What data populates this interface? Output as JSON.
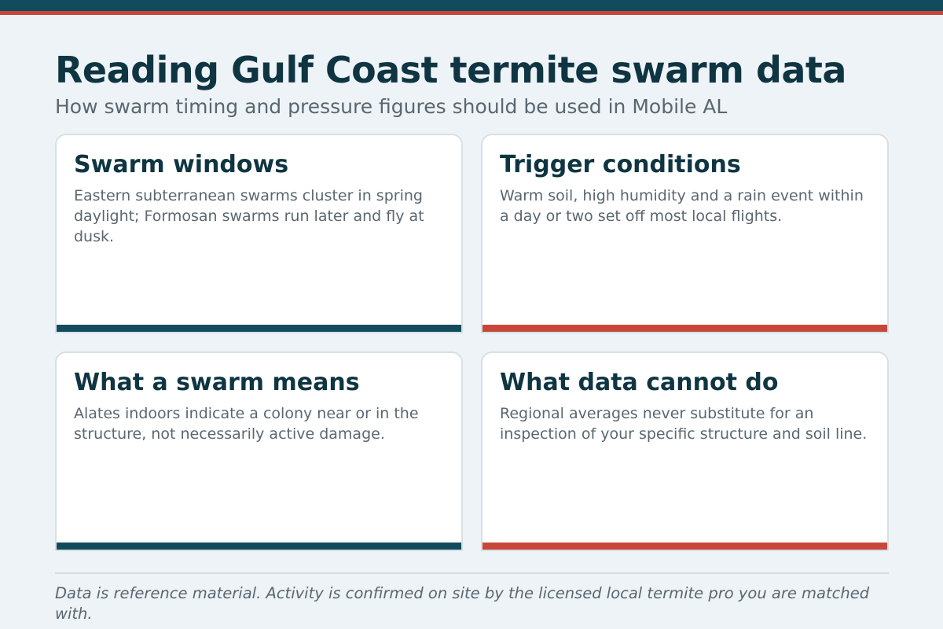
{
  "colors": {
    "primary": "#124c5c",
    "accent": "#c8473a",
    "background": "#eef3f7",
    "title_text": "#0f3542",
    "body_text": "#5a6770"
  },
  "header": {
    "title": "Reading Gulf Coast termite swarm data",
    "subtitle": "How swarm timing and pressure figures should be used in Mobile AL"
  },
  "cards": [
    {
      "title": "Swarm windows",
      "body": "Eastern subterranean swarms cluster in spring daylight; Formosan swarms run later and fly at dusk.",
      "accent": "teal"
    },
    {
      "title": "Trigger conditions",
      "body": "Warm soil, high humidity and a rain event within a day or two set off most local flights.",
      "accent": "red"
    },
    {
      "title": "What a swarm means",
      "body": "Alates indoors indicate a colony near or in the structure, not necessarily active damage.",
      "accent": "teal"
    },
    {
      "title": "What data cannot do",
      "body": "Regional averages never substitute for an inspection of your specific structure and soil line.",
      "accent": "red"
    }
  ],
  "footer": {
    "note": "Data is reference material. Activity is confirmed on site by the licensed local termite pro you are matched with."
  }
}
